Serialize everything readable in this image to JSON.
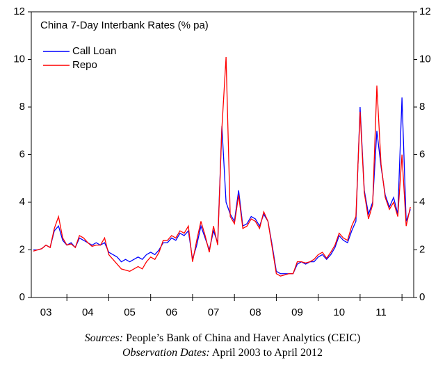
{
  "chart_data": {
    "type": "line",
    "title": "China 7-Day Interbank Rates (% pa)",
    "x": [
      2003.2,
      2003.3,
      2003.4,
      2003.5,
      2003.6,
      2003.7,
      2003.8,
      2003.9,
      2004.0,
      2004.1,
      2004.2,
      2004.3,
      2004.4,
      2004.5,
      2004.6,
      2004.7,
      2004.8,
      2004.9,
      2005.0,
      2005.1,
      2005.2,
      2005.3,
      2005.4,
      2005.5,
      2005.6,
      2005.7,
      2005.8,
      2005.9,
      2006.0,
      2006.1,
      2006.2,
      2006.3,
      2006.4,
      2006.5,
      2006.6,
      2006.7,
      2006.8,
      2006.9,
      2007.0,
      2007.1,
      2007.2,
      2007.3,
      2007.4,
      2007.5,
      2007.6,
      2007.7,
      2007.8,
      2007.9,
      2008.0,
      2008.1,
      2008.2,
      2008.3,
      2008.4,
      2008.5,
      2008.6,
      2008.7,
      2008.8,
      2008.9,
      2009.0,
      2009.1,
      2009.2,
      2009.3,
      2009.4,
      2009.5,
      2009.6,
      2009.7,
      2009.8,
      2009.9,
      2010.0,
      2010.1,
      2010.2,
      2010.3,
      2010.4,
      2010.5,
      2010.6,
      2010.7,
      2010.8,
      2010.9,
      2011.0,
      2011.1,
      2011.2,
      2011.3,
      2011.4,
      2011.5,
      2011.6,
      2011.7,
      2011.8,
      2011.9,
      2012.0,
      2012.1,
      2012.2
    ],
    "series": [
      {
        "name": "Call Loan",
        "color": "#0000ff",
        "values": [
          2.0,
          2.0,
          2.05,
          2.2,
          2.1,
          2.8,
          3.0,
          2.4,
          2.2,
          2.3,
          2.1,
          2.5,
          2.4,
          2.3,
          2.2,
          2.3,
          2.2,
          2.3,
          1.9,
          1.8,
          1.7,
          1.5,
          1.6,
          1.5,
          1.6,
          1.7,
          1.6,
          1.8,
          1.9,
          1.8,
          2.0,
          2.3,
          2.3,
          2.5,
          2.4,
          2.7,
          2.6,
          2.8,
          1.6,
          2.2,
          3.0,
          2.5,
          2.0,
          2.8,
          2.3,
          7.2,
          4.0,
          3.5,
          3.2,
          4.5,
          3.0,
          3.1,
          3.4,
          3.3,
          3.0,
          3.5,
          3.2,
          2.2,
          1.1,
          1.0,
          1.0,
          1.0,
          1.0,
          1.4,
          1.5,
          1.4,
          1.5,
          1.5,
          1.7,
          1.8,
          1.6,
          1.8,
          2.1,
          2.6,
          2.4,
          2.3,
          2.8,
          3.2,
          8.0,
          4.5,
          3.5,
          4.0,
          7.0,
          5.5,
          4.3,
          3.8,
          4.2,
          3.5,
          8.4,
          3.2,
          3.7
        ]
      },
      {
        "name": "Repo",
        "color": "#ff0000",
        "values": [
          1.95,
          2.0,
          2.05,
          2.2,
          2.1,
          2.9,
          3.4,
          2.5,
          2.2,
          2.25,
          2.1,
          2.6,
          2.5,
          2.3,
          2.15,
          2.2,
          2.2,
          2.5,
          1.8,
          1.6,
          1.4,
          1.2,
          1.15,
          1.1,
          1.2,
          1.3,
          1.2,
          1.5,
          1.7,
          1.6,
          1.9,
          2.4,
          2.4,
          2.6,
          2.5,
          2.8,
          2.7,
          3.0,
          1.5,
          2.4,
          3.2,
          2.6,
          1.9,
          3.0,
          2.2,
          7.1,
          10.1,
          3.4,
          3.1,
          4.3,
          2.9,
          3.0,
          3.3,
          3.2,
          2.9,
          3.6,
          3.2,
          2.1,
          1.0,
          0.9,
          0.95,
          1.0,
          1.0,
          1.5,
          1.5,
          1.45,
          1.5,
          1.6,
          1.8,
          1.9,
          1.65,
          1.9,
          2.2,
          2.7,
          2.5,
          2.4,
          3.0,
          3.4,
          7.8,
          4.4,
          3.3,
          3.9,
          8.9,
          5.6,
          4.2,
          3.7,
          4.0,
          3.4,
          6.0,
          3.0,
          3.8
        ]
      }
    ],
    "xlim": [
      2003.15,
      2012.28
    ],
    "xticks": [
      {
        "value": 2003.5,
        "label": "03"
      },
      {
        "value": 2004.5,
        "label": "04"
      },
      {
        "value": 2005.5,
        "label": "05"
      },
      {
        "value": 2006.5,
        "label": "06"
      },
      {
        "value": 2007.5,
        "label": "07"
      },
      {
        "value": 2008.5,
        "label": "08"
      },
      {
        "value": 2009.5,
        "label": "09"
      },
      {
        "value": 2010.5,
        "label": "10"
      },
      {
        "value": 2011.5,
        "label": "11"
      }
    ],
    "xtick_marks": [
      2004,
      2005,
      2006,
      2007,
      2008,
      2009,
      2010,
      2011,
      2012
    ],
    "ylim": [
      0,
      12
    ],
    "yticks": [
      0,
      2,
      4,
      6,
      8,
      10,
      12
    ],
    "legend": "upper left"
  },
  "notes": {
    "sources_label": "Sources:",
    "sources": "People’s Bank of China and Haver Analytics (CEIC)",
    "dates_label": "Observation Dates:",
    "dates": "April 2003 to April 2012"
  }
}
